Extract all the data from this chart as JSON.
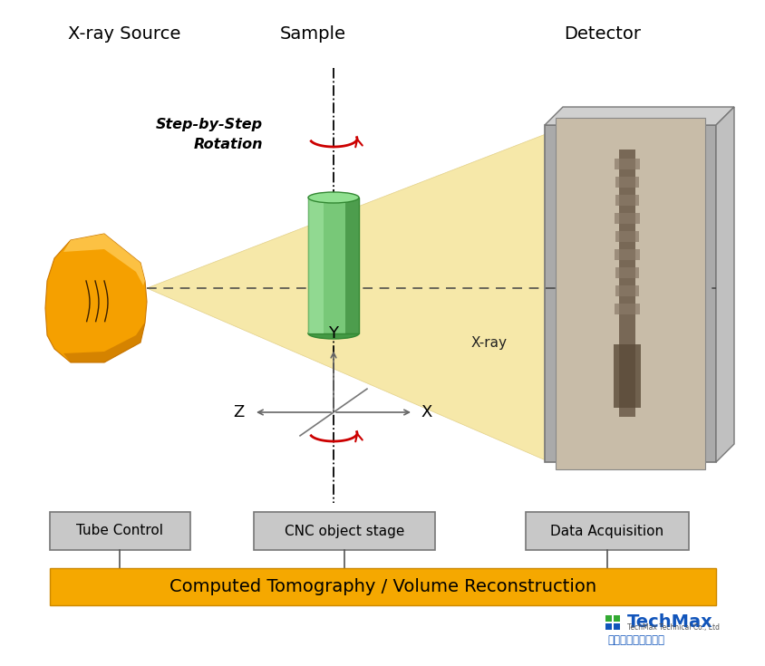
{
  "bg_color": "#ffffff",
  "title_xray": "X-ray Source",
  "title_sample": "Sample",
  "title_detector": "Detector",
  "label_xray_beam": "X-ray",
  "label_step_line1": "Step-by-Step",
  "label_step_line2": "Rotation",
  "label_x": "X",
  "label_y": "Y",
  "label_z": "Z",
  "box1_text": "Tube Control",
  "box2_text": "CNC object stage",
  "box3_text": "Data Acquisition",
  "bottom_bar_text": "Computed Tomography / Volume Reconstruction",
  "orange_color": "#F5A800",
  "xray_cone_color": "#F5E6A0",
  "red_arrow_color": "#CC0000",
  "axis_line_color": "#777777",
  "dashed_line_color": "#444444",
  "techmax_chinese": "科　遠　斯　集　團"
}
